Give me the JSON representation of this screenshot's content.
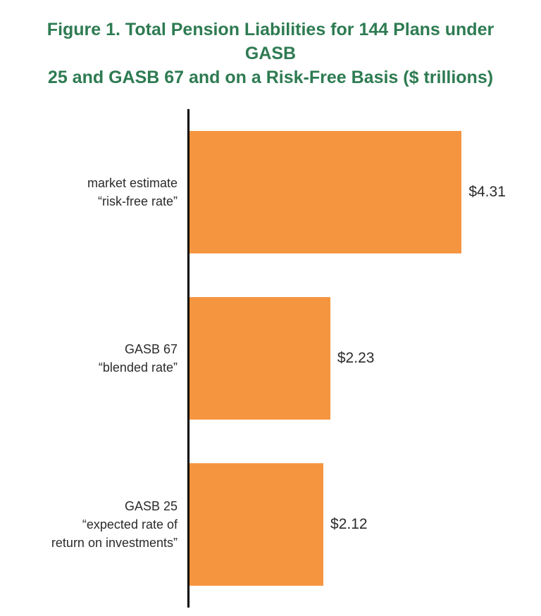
{
  "title": "Figure 1. Total Pension Liabilities for 144 Plans under GASB\n25 and GASB 67 and on a Risk-Free Basis ($ trillions)",
  "chart_data": {
    "type": "bar",
    "orientation": "horizontal",
    "title": "Figure 1. Total Pension Liabilities for 144 Plans under GASB 25 and GASB 67 and on a Risk-Free Basis ($ trillions)",
    "categories": [
      "market estimate\n“risk-free rate”",
      "GASB 67\n“blended rate”",
      "GASB 25\n“expected rate of\nreturn on investments”"
    ],
    "values": [
      4.31,
      2.23,
      2.12
    ],
    "value_labels": [
      "$4.31",
      "$2.23",
      "$2.12"
    ],
    "unit": "$ trillions",
    "xlim": [
      0,
      5.5
    ],
    "bar_color": "#f69540",
    "axis_color": "#000000",
    "title_color": "#2e7b52",
    "grid": false,
    "legend": false
  }
}
